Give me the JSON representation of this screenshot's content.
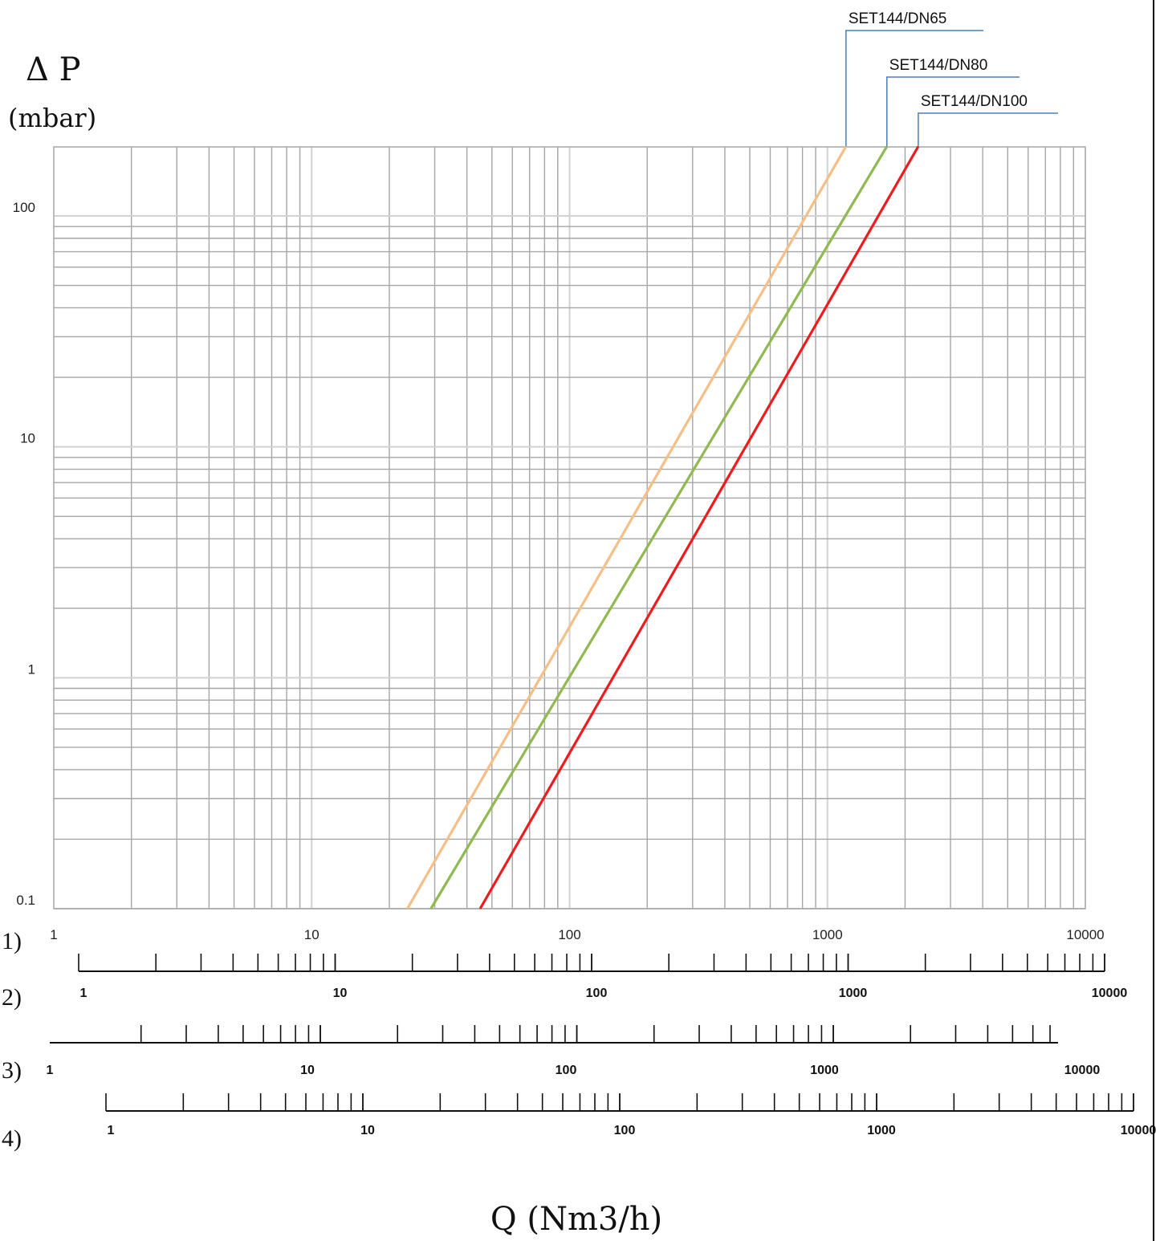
{
  "chart_data": {
    "type": "line",
    "y_symbol": "Δ P",
    "y_unit": "(mbar)",
    "xlabel": "Q (Nm3/h)",
    "x_scale": "log",
    "y_scale": "log",
    "xlim": [
      1,
      10000
    ],
    "ylim": [
      0.1,
      200
    ],
    "grid": true,
    "x_tick_labels": [
      "1",
      "10",
      "100",
      "1000",
      "10000"
    ],
    "y_tick_labels": [
      "100",
      "10",
      "1",
      "0.1"
    ],
    "series": [
      {
        "name": "SET144/DN65",
        "color": "#f5bf86",
        "x": [
          23.5,
          1180
        ],
        "y": [
          0.1,
          200
        ]
      },
      {
        "name": "SET144/DN80",
        "color": "#8fba4f",
        "x": [
          29,
          1700
        ],
        "y": [
          0.1,
          200
        ]
      },
      {
        "name": "SET144/DN100",
        "color": "#ee1c1c",
        "x": [
          45,
          2250
        ],
        "y": [
          0.1,
          200
        ]
      }
    ],
    "conversion_scales": [
      {
        "label": "1)",
        "tick_labels": [
          "1",
          "10",
          "100",
          "1000",
          "10000"
        ]
      },
      {
        "label": "2)",
        "tick_labels": [
          "1",
          "10",
          "100",
          "1000",
          "10000"
        ]
      },
      {
        "label": "3)",
        "tick_labels": [
          "1",
          "10",
          "100",
          "1000",
          "10000"
        ]
      },
      {
        "label": "4)",
        "tick_labels": [
          "1",
          "10",
          "100",
          "1000",
          "10000"
        ]
      }
    ]
  }
}
